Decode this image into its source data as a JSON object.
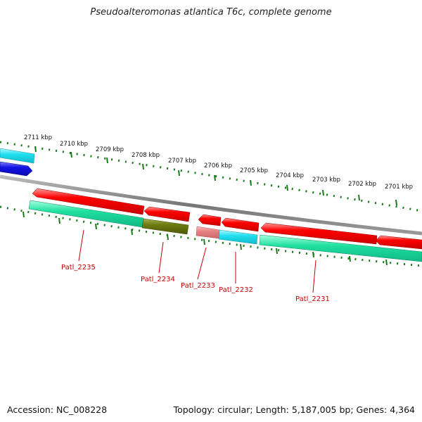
{
  "title": "Pseudoalteromonas atlantica T6c, complete genome",
  "footer": {
    "accession": "Accession: NC_008228",
    "summary": "Topology: circular; Length: 5,187,005 bp; Genes: 4,364"
  },
  "scale": {
    "ticks": [
      "2711 kbp",
      "2710 kbp",
      "2709 kbp",
      "2708 kbp",
      "2707 kbp",
      "2706 kbp",
      "2705 kbp",
      "2704 kbp",
      "2703 kbp",
      "2702 kbp",
      "2701 kbp"
    ]
  },
  "genes": [
    {
      "label": "Patl_2235",
      "color": "#cc0000"
    },
    {
      "label": "Patl_2234",
      "color": "#cc0000"
    },
    {
      "label": "Patl_2233",
      "color": "#cc0000"
    },
    {
      "label": "Patl_2232",
      "color": "#cc0000"
    },
    {
      "label": "Patl_2231",
      "color": "#cc0000"
    }
  ],
  "colors": {
    "backbone": "#888888",
    "scale_dots": "#1a7a1a",
    "cds_forward": "#ff0000",
    "cds_reverse_other": "#1414e6",
    "cog_teal": "#1fe0a0",
    "cog_cyan": "#22e0f0",
    "cog_olive": "#6b7a10",
    "cog_pink": "#e88080",
    "label_color": "#cc0000"
  }
}
